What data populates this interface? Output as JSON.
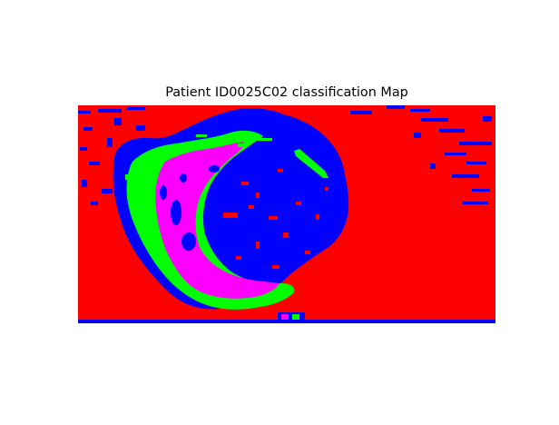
{
  "figure": {
    "title": "Patient ID0025C02 classification Map"
  },
  "map": {
    "class_colors": {
      "background": "#ff0000",
      "class_blue": "#0000ff",
      "class_green": "#00ff00",
      "class_magenta": "#ff00ff"
    }
  }
}
